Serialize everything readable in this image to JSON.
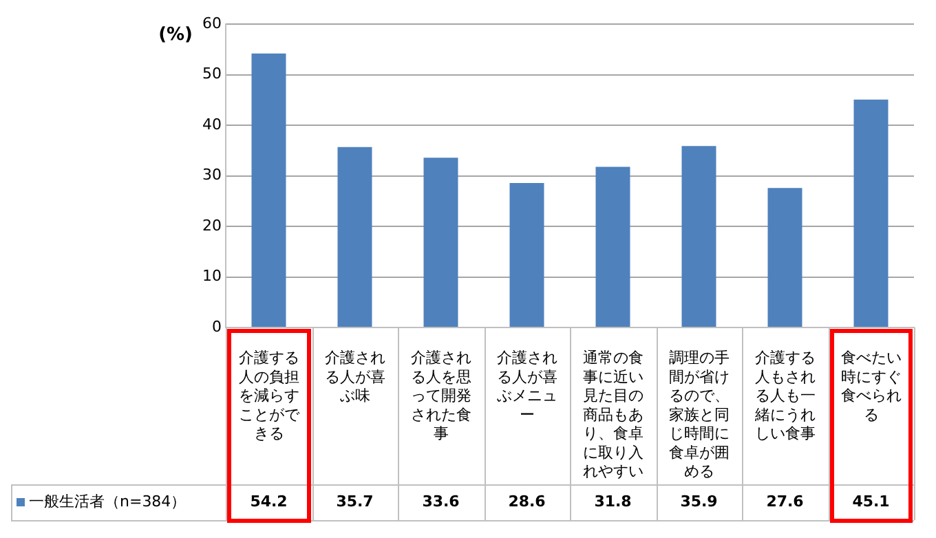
{
  "chart_data": {
    "type": "bar",
    "ylabel": "(%)",
    "categories": [
      "介護する人の負担を減らすことができる",
      "介護される人が喜ぶ味",
      "介護される人を思って開発された食事",
      "介護される人が喜ぶメニュー",
      "通常の食事に近い見た目の商品もあり、食卓に取り入れやすい",
      "調理の手間が省けるので、家族と同じ時間に食卓が囲める",
      "介護する人もされる人も一緒にうれしい食事",
      "食べたい時にすぐ食べられる"
    ],
    "series": [
      {
        "name": "一般生活者（n=384）",
        "color": "#4f81bd",
        "values": [
          54.2,
          35.7,
          33.6,
          28.6,
          31.8,
          35.9,
          27.6,
          45.1
        ]
      }
    ],
    "ylim": [
      0,
      60
    ],
    "yticks": [
      0,
      10,
      20,
      30,
      40,
      50,
      60
    ],
    "grid": "y",
    "data_labels": true
  }
}
